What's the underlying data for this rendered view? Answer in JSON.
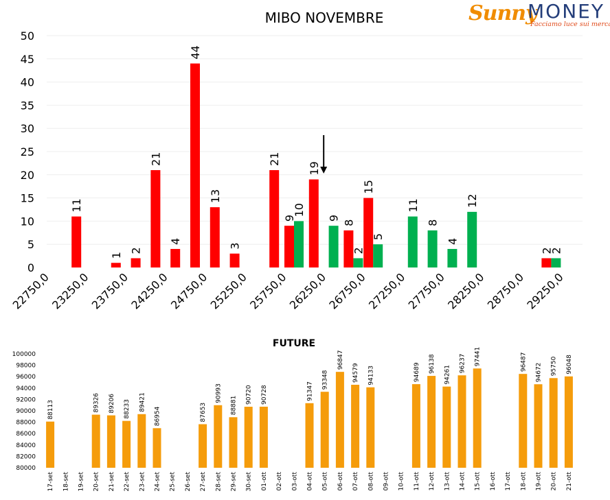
{
  "logo": {
    "name_part1": "Sunny",
    "name_part2": "MONEY",
    "tagline": "Facciamo luce sui mercati"
  },
  "chart_data": [
    {
      "type": "bar",
      "title": "MIBO NOVEMBRE",
      "ylim": [
        0,
        50
      ],
      "yticks": [
        0,
        5,
        10,
        15,
        20,
        25,
        30,
        35,
        40,
        45,
        50
      ],
      "grid": true,
      "x_tick_labels": [
        "22750,0",
        "23250,0",
        "23750,0",
        "24250,0",
        "24750,0",
        "25250,0",
        "25750,0",
        "26250,0",
        "26750,0",
        "27250,0",
        "27750,0",
        "28250,0",
        "28750,0",
        "29250,0"
      ],
      "strike_start": 22750,
      "strike_step": 250,
      "strike_count": 27,
      "series": [
        {
          "color": "#ff0000",
          "points": [
            {
              "strike": 23000,
              "value": 11
            },
            {
              "strike": 23500,
              "value": 1
            },
            {
              "strike": 23750,
              "value": 2
            },
            {
              "strike": 24000,
              "value": 21
            },
            {
              "strike": 24250,
              "value": 4
            },
            {
              "strike": 24500,
              "value": 44
            },
            {
              "strike": 24750,
              "value": 13
            },
            {
              "strike": 25000,
              "value": 3
            },
            {
              "strike": 25500,
              "value": 21
            },
            {
              "strike": 25750,
              "value": 9
            },
            {
              "strike": 26000,
              "value": 19
            },
            {
              "strike": 26500,
              "value": 8
            },
            {
              "strike": 26750,
              "value": 15
            },
            {
              "strike": 29000,
              "value": 2
            }
          ]
        },
        {
          "color": "#00b050",
          "points": [
            {
              "strike": 25750,
              "value": 10
            },
            {
              "strike": 26250,
              "value": 9
            },
            {
              "strike": 26500,
              "value": 2
            },
            {
              "strike": 26750,
              "value": 5
            },
            {
              "strike": 27250,
              "value": 11
            },
            {
              "strike": 27500,
              "value": 8
            },
            {
              "strike": 27750,
              "value": 4
            },
            {
              "strike": 28000,
              "value": 12
            },
            {
              "strike": 29000,
              "value": 2
            }
          ]
        }
      ],
      "annotation": {
        "type": "arrow-down",
        "strike": 26250
      }
    },
    {
      "type": "bar",
      "title": "FUTURE",
      "color": "#f59c0b",
      "ylim": [
        80000,
        100000
      ],
      "yticks": [
        80000,
        82000,
        84000,
        86000,
        88000,
        90000,
        92000,
        94000,
        96000,
        98000,
        100000
      ],
      "categories": [
        "17-set",
        "18-set",
        "19-set",
        "20-set",
        "21-set",
        "22-set",
        "23-set",
        "24-set",
        "25-set",
        "26-set",
        "27-set",
        "28-set",
        "29-set",
        "30-set",
        "01-ott",
        "02-ott",
        "03-ott",
        "04-ott",
        "05-ott",
        "06-ott",
        "07-ott",
        "08-ott",
        "09-ott",
        "10-ott",
        "11-ott",
        "12-ott",
        "13-ott",
        "14-ott",
        "15-ott",
        "16-ott",
        "17-ott",
        "18-ott",
        "19-ott",
        "20-ott",
        "21-ott"
      ],
      "values": [
        88113,
        null,
        null,
        89326,
        89206,
        88233,
        89421,
        86954,
        null,
        null,
        87653,
        90993,
        88881,
        90720,
        90728,
        null,
        null,
        91347,
        93348,
        96847,
        94579,
        94133,
        null,
        null,
        94689,
        96138,
        94261,
        96237,
        97441,
        null,
        null,
        96487,
        94672,
        95750,
        96048
      ]
    }
  ]
}
